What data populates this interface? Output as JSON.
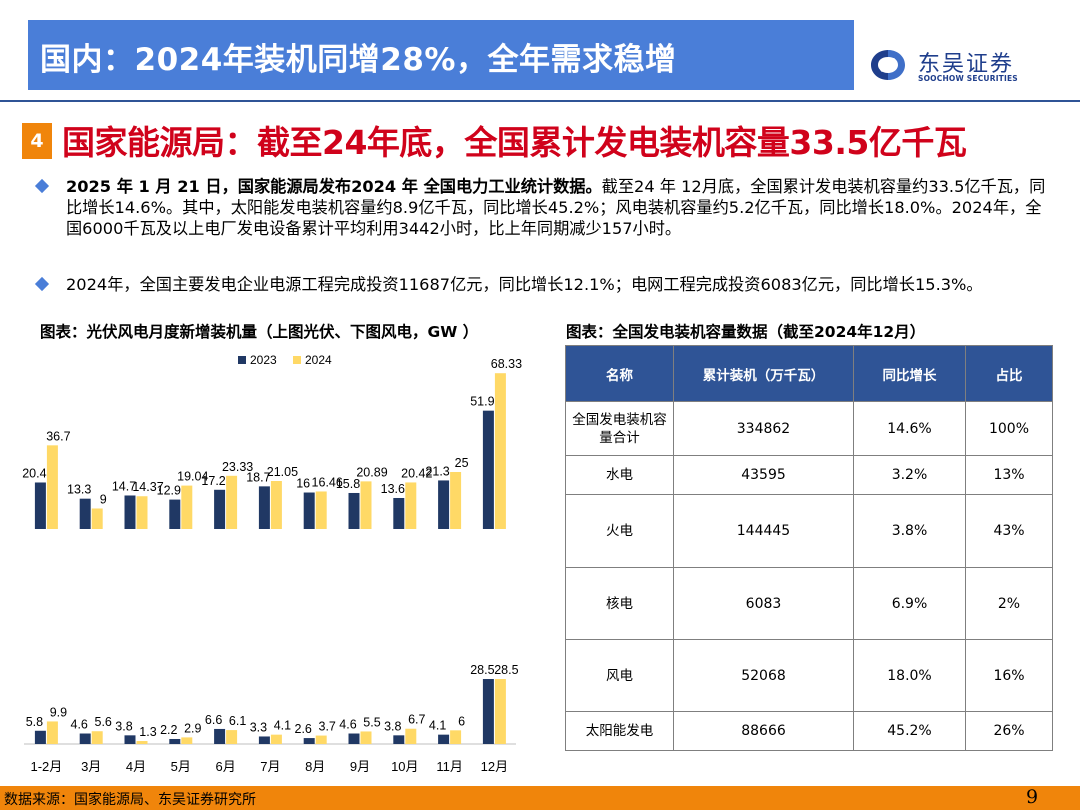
{
  "header": {
    "title": "国内：2024年装机同增28%，全年需求稳增",
    "brand_name": "东吴证券",
    "brand_en": "SOOCHOW SECURITIES",
    "logo_icon": "soochow-logo-icon",
    "banner_color": "#4a7ed8"
  },
  "section": {
    "number": "4",
    "title": "国家能源局：截至24年底，全国累计发电装机容量33.5亿千瓦"
  },
  "paragraphs": [
    {
      "bold": "2025 年 1 月 21 日，国家能源局发布2024 年 全国电力工业统计数据。",
      "text": "截至24 年 12月底，全国累计发电装机容量约33.5亿千瓦，同比增长14.6%。其中，太阳能发电装机容量约8.9亿千瓦，同比增长45.2%；风电装机容量约5.2亿千瓦，同比增长18.0%。2024年，全国6000千瓦及以上电厂发电设备累计平均利用3442小时，比上年同期减少157小时。"
    },
    {
      "bold": "",
      "text": "2024年，全国主要发电企业电源工程完成投资11687亿元，同比增长12.1%；电网工程完成投资6083亿元，同比增长15.3%。"
    }
  ],
  "captions": {
    "left": "图表：光伏风电月度新增装机量（上图光伏、下图风电，GW ）",
    "right": "图表：全国发电装机容量数据（截至2024年12月）"
  },
  "chart_data": [
    {
      "type": "bar",
      "title": "光伏",
      "categories": [
        "1-2月",
        "3月",
        "4月",
        "5月",
        "6月",
        "7月",
        "8月",
        "9月",
        "10月",
        "11月",
        "12月"
      ],
      "series": [
        {
          "name": "2023",
          "color": "#203864",
          "values": [
            20.4,
            13.3,
            14.7,
            12.9,
            17.2,
            18.7,
            16.0,
            15.8,
            13.6,
            21.3,
            51.9
          ]
        },
        {
          "name": "2024",
          "color": "#ffd966",
          "values": [
            36.7,
            9.0,
            14.37,
            19.04,
            23.33,
            21.05,
            16.46,
            20.89,
            20.42,
            25,
            68.33
          ]
        }
      ]
    },
    {
      "type": "bar",
      "title": "风电",
      "categories": [
        "1-2月",
        "3月",
        "4月",
        "5月",
        "6月",
        "7月",
        "8月",
        "9月",
        "10月",
        "11月",
        "12月"
      ],
      "series": [
        {
          "name": "2023",
          "color": "#203864",
          "values": [
            5.8,
            4.6,
            3.8,
            2.2,
            6.6,
            3.3,
            2.6,
            4.6,
            3.8,
            4.1,
            28.5
          ]
        },
        {
          "name": "2024",
          "color": "#ffd966",
          "values": [
            9.9,
            5.6,
            1.3,
            2.9,
            6.1,
            4.1,
            3.7,
            5.5,
            6.7,
            6.0,
            28.5
          ]
        }
      ]
    }
  ],
  "table": {
    "headers": [
      "名称",
      "累计装机（万千瓦）",
      "同比增长",
      "占比"
    ],
    "rows": [
      [
        "全国发电装机容量合计",
        "334862",
        "14.6%",
        "100%"
      ],
      [
        "水电",
        "43595",
        "3.2%",
        "13%"
      ],
      [
        "火电",
        "144445",
        "3.8%",
        "43%"
      ],
      [
        "核电",
        "6083",
        "6.9%",
        "2%"
      ],
      [
        "风电",
        "52068",
        "18.0%",
        "16%"
      ],
      [
        "太阳能发电",
        "88666",
        "45.2%",
        "26%"
      ]
    ]
  },
  "footer": {
    "source": "数据来源：国家能源局、东吴证券研究所",
    "page": "9"
  }
}
